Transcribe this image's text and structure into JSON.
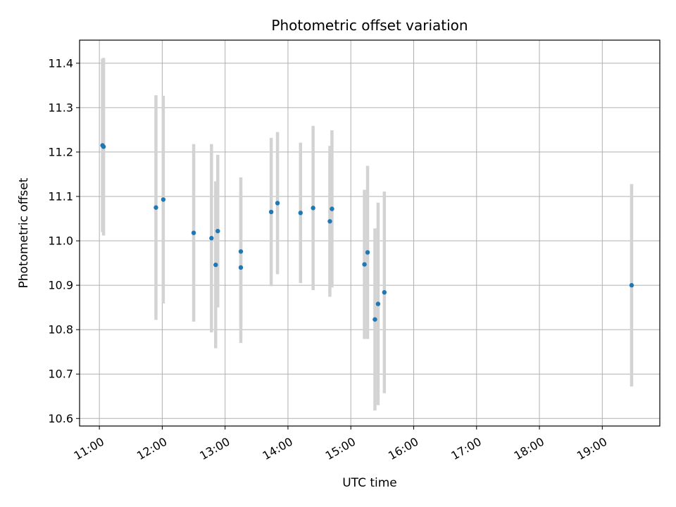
{
  "chart_data": {
    "type": "scatter",
    "title": "Photometric offset variation",
    "xlabel": "UTC time",
    "ylabel": "Photometric offset",
    "x_tick_labels": [
      "11:00",
      "12:00",
      "13:00",
      "14:00",
      "15:00",
      "16:00",
      "17:00",
      "18:00",
      "19:00"
    ],
    "x_tick_hours": [
      11,
      12,
      13,
      14,
      15,
      16,
      17,
      18,
      19
    ],
    "xlim_hours": [
      10.685,
      19.915
    ],
    "y_tick_labels": [
      "10.6",
      "10.7",
      "10.8",
      "10.9",
      "11.0",
      "11.1",
      "11.2",
      "11.3",
      "11.4"
    ],
    "y_ticks": [
      10.6,
      10.7,
      10.8,
      10.9,
      11.0,
      11.1,
      11.2,
      11.3,
      11.4
    ],
    "ylim": [
      10.583,
      11.452
    ],
    "grid": true,
    "marker_color": "#1f77b4",
    "errorbar_color": "#d3d3d3",
    "points": [
      {
        "time": "11:03",
        "y": 11.215,
        "err": 0.195
      },
      {
        "time": "11:04",
        "y": 11.212,
        "err": 0.2
      },
      {
        "time": "11:54",
        "y": 11.075,
        "err": 0.253
      },
      {
        "time": "12:01",
        "y": 11.093,
        "err": 0.234
      },
      {
        "time": "12:30",
        "y": 11.018,
        "err": 0.2
      },
      {
        "time": "12:47",
        "y": 11.006,
        "err": 0.212
      },
      {
        "time": "12:51",
        "y": 10.946,
        "err": 0.188
      },
      {
        "time": "12:53",
        "y": 11.022,
        "err": 0.172
      },
      {
        "time": "13:15",
        "y": 10.976,
        "err": 0.167
      },
      {
        "time": "13:15",
        "y": 10.94,
        "err": 0.17
      },
      {
        "time": "13:44",
        "y": 11.065,
        "err": 0.167
      },
      {
        "time": "13:50",
        "y": 11.085,
        "err": 0.16
      },
      {
        "time": "14:12",
        "y": 11.063,
        "err": 0.158
      },
      {
        "time": "14:24",
        "y": 11.074,
        "err": 0.185
      },
      {
        "time": "14:40",
        "y": 11.044,
        "err": 0.17
      },
      {
        "time": "14:42",
        "y": 11.072,
        "err": 0.177
      },
      {
        "time": "15:13",
        "y": 10.947,
        "err": 0.168
      },
      {
        "time": "15:16",
        "y": 10.974,
        "err": 0.195
      },
      {
        "time": "15:23",
        "y": 10.823,
        "err": 0.205
      },
      {
        "time": "15:26",
        "y": 10.858,
        "err": 0.228
      },
      {
        "time": "15:32",
        "y": 10.884,
        "err": 0.227
      },
      {
        "time": "19:28",
        "y": 10.9,
        "err": 0.228
      }
    ]
  }
}
